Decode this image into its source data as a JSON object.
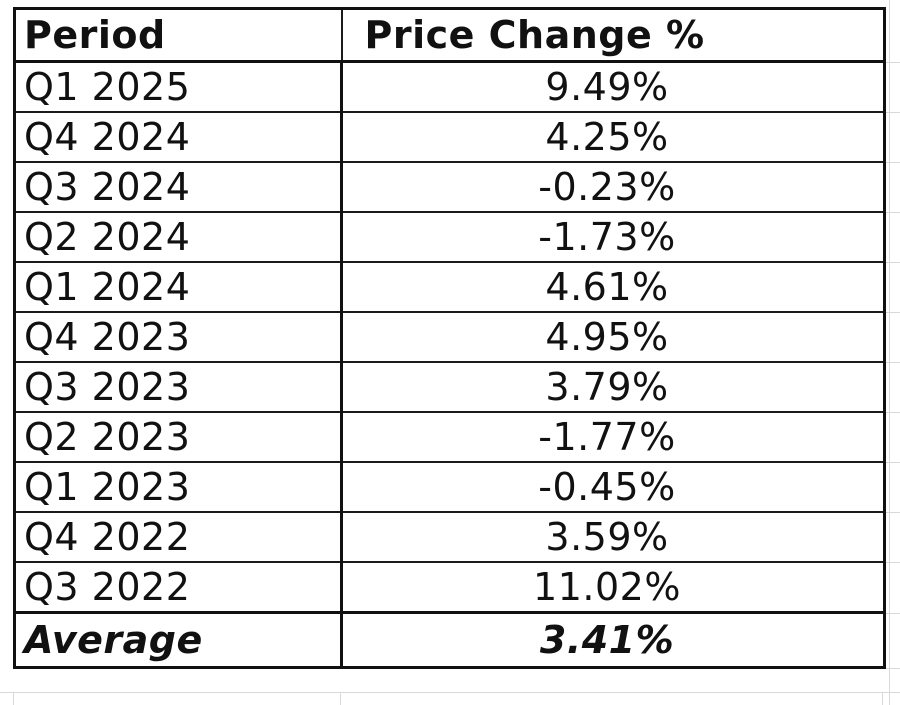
{
  "table": {
    "headers": {
      "period": "Period",
      "change": "Price Change %"
    },
    "rows": [
      {
        "period": "Q1 2025",
        "change": "9.49%"
      },
      {
        "period": "Q4 2024",
        "change": "4.25%"
      },
      {
        "period": "Q3 2024",
        "change": "-0.23%"
      },
      {
        "period": "Q2 2024",
        "change": "-1.73%"
      },
      {
        "period": "Q1 2024",
        "change": "4.61%"
      },
      {
        "period": "Q4 2023",
        "change": "4.95%"
      },
      {
        "period": "Q3 2023",
        "change": "3.79%"
      },
      {
        "period": "Q2 2023",
        "change": "-1.77%"
      },
      {
        "period": "Q1 2023",
        "change": "-0.45%"
      },
      {
        "period": "Q4 2022",
        "change": "3.59%"
      },
      {
        "period": "Q3 2022",
        "change": "11.02%"
      }
    ],
    "footer": {
      "label": "Average",
      "value": "3.41%"
    }
  }
}
